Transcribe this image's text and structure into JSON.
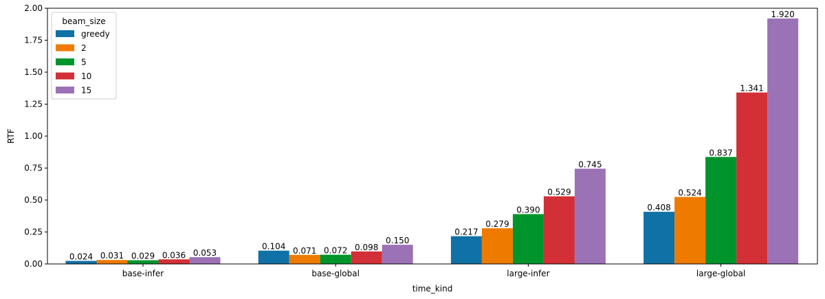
{
  "chart_data": {
    "type": "bar",
    "xlabel": "time_kind",
    "ylabel": "RTF",
    "categories": [
      "base-infer",
      "base-global",
      "large-infer",
      "large-global"
    ],
    "ylim": [
      0,
      2.0
    ],
    "yticks": [
      "0.00",
      "0.25",
      "0.50",
      "0.75",
      "1.00",
      "1.25",
      "1.50",
      "1.75",
      "2.00"
    ],
    "legend": {
      "title": "beam_size",
      "placement": "upper-left"
    },
    "series": [
      {
        "name": "greedy",
        "color": "#0f71a6",
        "values": [
          0.024,
          0.104,
          0.217,
          0.408
        ],
        "labels": [
          "0.024",
          "0.104",
          "0.217",
          "0.408"
        ]
      },
      {
        "name": "2",
        "color": "#ee7b00",
        "values": [
          0.031,
          0.071,
          0.279,
          0.524
        ],
        "labels": [
          "0.031",
          "0.071",
          "0.279",
          "0.524"
        ]
      },
      {
        "name": "5",
        "color": "#00952c",
        "values": [
          0.029,
          0.072,
          0.39,
          0.837
        ],
        "labels": [
          "0.029",
          "0.072",
          "0.390",
          "0.837"
        ]
      },
      {
        "name": "10",
        "color": "#d22f36",
        "values": [
          0.036,
          0.098,
          0.529,
          1.341
        ],
        "labels": [
          "0.036",
          "0.098",
          "0.529",
          "1.341"
        ]
      },
      {
        "name": "15",
        "color": "#9b72b6",
        "values": [
          0.053,
          0.15,
          0.745,
          1.92
        ],
        "labels": [
          "0.053",
          "0.150",
          "0.745",
          "1.920"
        ]
      }
    ]
  }
}
